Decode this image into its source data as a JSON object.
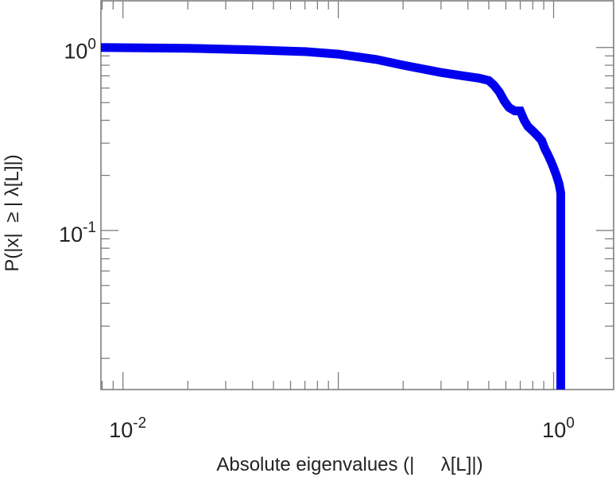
{
  "chart_data": {
    "type": "line",
    "title": "",
    "xlabel": "Absolute eigenvalues (|     λ[L]|)",
    "ylabel": "P(|x|  ≥ | λ[L]|)",
    "x_scale": "log",
    "y_scale": "log",
    "xlim": [
      0.0079,
      1.9
    ],
    "ylim": [
      0.0135,
      1.8
    ],
    "x_ticks": [
      {
        "value": 0.01,
        "base": "10",
        "exp": "-2"
      },
      {
        "value": 1,
        "base": "10",
        "exp": "0"
      }
    ],
    "y_ticks": [
      {
        "value": 0.1,
        "base": "10",
        "exp": "-1"
      },
      {
        "value": 1,
        "base": "10",
        "exp": "0"
      }
    ],
    "grid": false,
    "line_color": "#0000ee",
    "series": [
      {
        "x": [
          0.0079,
          0.02,
          0.04,
          0.07,
          0.1,
          0.15,
          0.2,
          0.3,
          0.38,
          0.45,
          0.5,
          0.53,
          0.56,
          0.59,
          0.62,
          0.66,
          0.7,
          0.73,
          0.76,
          0.8,
          0.84,
          0.88,
          0.91,
          0.94,
          0.97,
          1.0,
          1.03,
          1.06,
          1.08,
          1.08
        ],
        "y": [
          1.0,
          0.99,
          0.97,
          0.95,
          0.92,
          0.86,
          0.8,
          0.73,
          0.7,
          0.68,
          0.66,
          0.62,
          0.57,
          0.51,
          0.47,
          0.45,
          0.45,
          0.4,
          0.37,
          0.35,
          0.33,
          0.31,
          0.28,
          0.26,
          0.24,
          0.22,
          0.2,
          0.18,
          0.16,
          0.0135
        ]
      }
    ]
  }
}
